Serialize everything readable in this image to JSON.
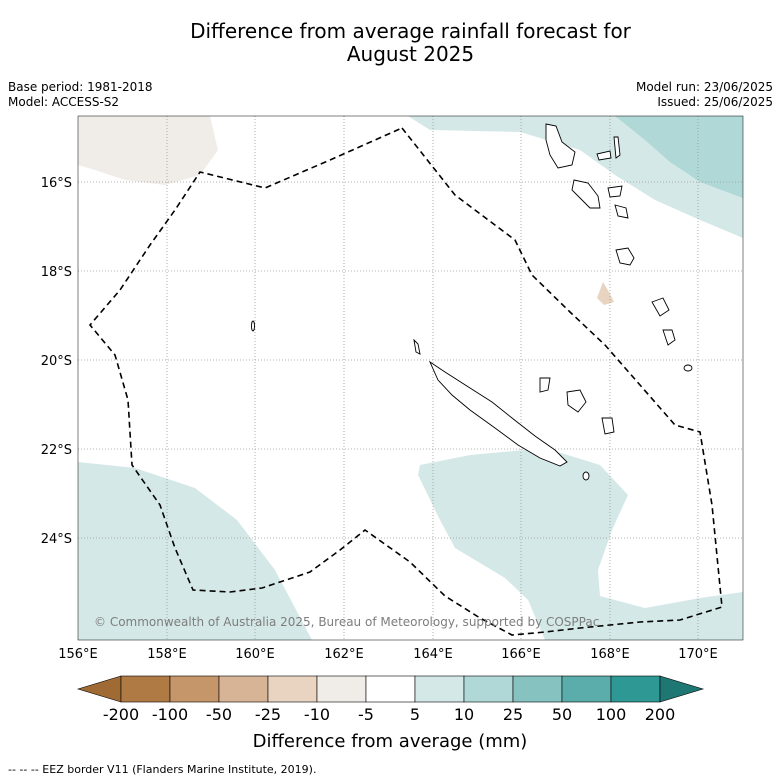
{
  "title_line1": "Difference from average rainfall forecast for",
  "title_line2": "August 2025",
  "base_period": "Base period: 1981-2018",
  "model": "Model: ACCESS-S2",
  "model_run": "Model run: 23/06/2025",
  "issued": "Issued: 25/06/2025",
  "copyright": "© Commonwealth of Australia 2025, Bureau of Meteorology, supported by COSPPac",
  "lon_labels": [
    "156°E",
    "158°E",
    "160°E",
    "162°E",
    "164°E",
    "166°E",
    "168°E",
    "170°E"
  ],
  "lat_labels": [
    "16°S",
    "18°S",
    "20°S",
    "22°S",
    "24°S"
  ],
  "colorbar": {
    "ticks": [
      "-200",
      "-100",
      "-50",
      "-25",
      "-10",
      "-5",
      "5",
      "10",
      "25",
      "50",
      "100",
      "200"
    ],
    "colors": [
      "#a06a35",
      "#b07a45",
      "#c4966a",
      "#d6b495",
      "#e8d4c0",
      "#f0ede8",
      "#ffffff",
      "#d4e9e7",
      "#b0d8d6",
      "#86c2c0",
      "#5aadab",
      "#2e9894",
      "#1f7773"
    ],
    "title": "Difference from average (mm)"
  },
  "footer": "--  --  -- EEZ border V11 (Flanders Marine Institute, 2019)."
}
